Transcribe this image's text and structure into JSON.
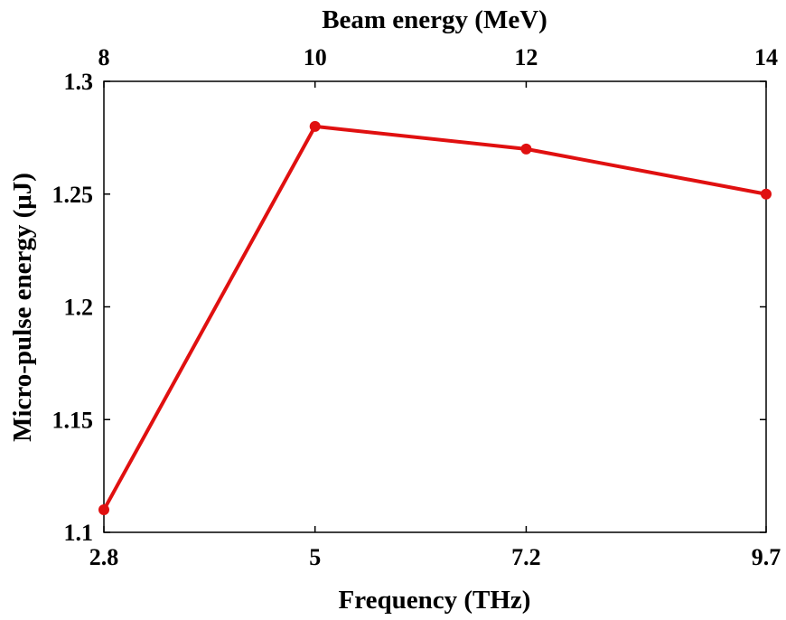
{
  "chart_data": {
    "type": "line",
    "x": [
      2.8,
      5,
      7.2,
      9.7
    ],
    "x_tick_labels": [
      "2.8",
      "5",
      "7.2",
      "9.7"
    ],
    "x2_tick_labels": [
      "8",
      "10",
      "12",
      "14"
    ],
    "series": [
      {
        "values": [
          1.11,
          1.28,
          1.27,
          1.25
        ],
        "color": "#e01010"
      }
    ],
    "xlabel": "Frequency (THz)",
    "x2label": "Beam energy (MeV)",
    "ylabel": "Micro-pulse energy (μJ)",
    "ylim": [
      1.1,
      1.3
    ],
    "y_ticks": [
      1.1,
      1.15,
      1.2,
      1.25,
      1.3
    ],
    "y_tick_labels": [
      "1.1",
      "1.15",
      "1.2",
      "1.25",
      "1.3"
    ],
    "grid": false
  }
}
